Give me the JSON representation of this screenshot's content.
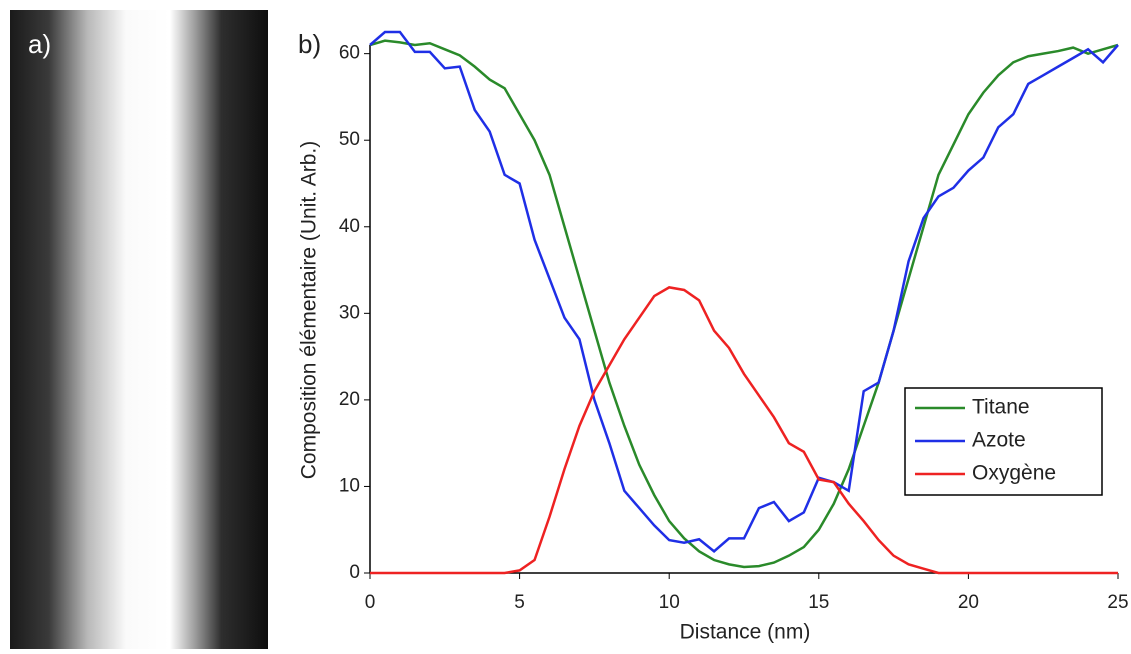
{
  "chart_data": {
    "type": "line",
    "annotations": [
      "a)",
      "b)"
    ],
    "x_label": "Distance (nm)",
    "y_label": "Composition élémentaire (Unit. Arb.)",
    "x": [
      0,
      0.5,
      1,
      1.5,
      2,
      2.5,
      3,
      3.5,
      4,
      4.5,
      5,
      5.5,
      6,
      6.5,
      7,
      7.5,
      8,
      8.5,
      9,
      9.5,
      10,
      10.5,
      11,
      11.5,
      12,
      12.5,
      13,
      13.5,
      14,
      14.5,
      15,
      15.5,
      16,
      16.5,
      17,
      17.5,
      18,
      18.5,
      19,
      19.5,
      20,
      20.5,
      21,
      21.5,
      22,
      22.5,
      23,
      23.5,
      24,
      24.5,
      25
    ],
    "series": [
      {
        "name": "Titane",
        "color": "#2a8a2a",
        "values": [
          61,
          61.5,
          61.3,
          61,
          61.2,
          60.5,
          59.8,
          58.5,
          57,
          56,
          53,
          50,
          46,
          40,
          34,
          28,
          22,
          17,
          12.5,
          9,
          6,
          4,
          2.5,
          1.5,
          1,
          0.7,
          0.8,
          1.2,
          2,
          3,
          5,
          8,
          12,
          17,
          22,
          28,
          34,
          40,
          46,
          49.5,
          53,
          55.5,
          57.5,
          59,
          59.7,
          60,
          60.3,
          60.7,
          60,
          60.5,
          61
        ]
      },
      {
        "name": "Azote",
        "color": "#1f2fe6",
        "values": [
          61,
          62.5,
          62.5,
          60.2,
          60.2,
          58.3,
          58.5,
          53.5,
          51,
          46,
          45,
          38.5,
          34,
          29.5,
          27,
          20,
          15,
          9.5,
          7.5,
          5.5,
          3.8,
          3.5,
          3.9,
          2.5,
          4,
          4,
          7.5,
          8.2,
          6,
          7,
          11,
          10.5,
          9.5,
          21,
          22,
          28,
          36,
          41,
          43.5,
          44.5,
          46.5,
          48,
          51.5,
          53,
          56.5,
          57.5,
          58.5,
          59.5,
          60.5,
          59,
          61
        ]
      },
      {
        "name": "Oxygène",
        "color": "#ee2222",
        "values": [
          0,
          0,
          0,
          0,
          0,
          0,
          0,
          0,
          0,
          0,
          0.3,
          1.5,
          6.5,
          12,
          17,
          21,
          24,
          27,
          29.5,
          32,
          33,
          32.7,
          31.5,
          28,
          26,
          23,
          20.5,
          18,
          15,
          14,
          10.8,
          10.5,
          8,
          6,
          3.8,
          2,
          1,
          0.5,
          0,
          0,
          0,
          0,
          0,
          0,
          0,
          0,
          0,
          0,
          0,
          0,
          0
        ]
      }
    ],
    "xlim": [
      0,
      25
    ],
    "ylim": [
      0,
      61
    ],
    "xticks": [
      0,
      5,
      10,
      15,
      20,
      25
    ],
    "yticks": [
      0,
      10,
      20,
      30,
      40,
      50,
      60
    ]
  }
}
